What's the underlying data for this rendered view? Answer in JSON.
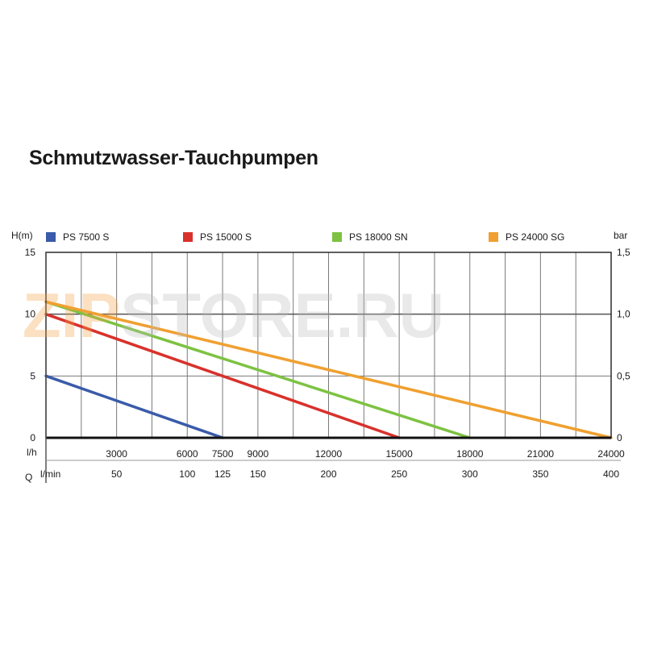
{
  "title": "Schmutzwasser-Tauchpumpen",
  "watermark": {
    "part1": "ZIP",
    "part2": "STORE.RU",
    "color1": "#f5a040",
    "color2": "#bdbdbd"
  },
  "chart_data": {
    "type": "line",
    "title": "Schmutzwasser-Tauchpumpen",
    "ylabel_left": "H(m)",
    "ylabel_right": "bar",
    "xlabel": "Q",
    "x_unit_top": "l/h",
    "x_unit_bottom": "l/min",
    "xlim": [
      0,
      400
    ],
    "ylim": [
      0,
      15
    ],
    "ylim_right": [
      0,
      1.5
    ],
    "y_ticks": [
      "15",
      "10",
      "5",
      "0"
    ],
    "y_tick_values": [
      15,
      10,
      5,
      0
    ],
    "y_right_ticks": [
      "1,5",
      "1,0",
      "0,5",
      "0"
    ],
    "y_right_tick_values": [
      15,
      10,
      5,
      0
    ],
    "x_ticks_lh": [
      "3000",
      "6000",
      "7500",
      "9000",
      "12000",
      "15000",
      "18000",
      "21000",
      "24000"
    ],
    "x_ticks_lh_values": [
      50,
      100,
      125,
      150,
      200,
      250,
      300,
      350,
      400
    ],
    "x_ticks_lmin": [
      "50",
      "100",
      "125",
      "150",
      "200",
      "250",
      "300",
      "350",
      "400"
    ],
    "x_ticks_lmin_values": [
      50,
      100,
      125,
      150,
      200,
      250,
      300,
      350,
      400
    ],
    "grid": true,
    "legend_position": "top",
    "series": [
      {
        "name": "PS 7500 S",
        "color": "#3a5ba9",
        "x": [
          0,
          125
        ],
        "y": [
          5,
          0
        ]
      },
      {
        "name": "PS 15000 S",
        "color": "#d9312b",
        "x": [
          0,
          250
        ],
        "y": [
          10,
          0
        ]
      },
      {
        "name": "PS 18000 SN",
        "color": "#7dc242",
        "x": [
          0,
          300
        ],
        "y": [
          11,
          0
        ]
      },
      {
        "name": "PS 24000 SG",
        "color": "#f0a030",
        "x": [
          0,
          400
        ],
        "y": [
          11,
          0
        ]
      }
    ]
  }
}
